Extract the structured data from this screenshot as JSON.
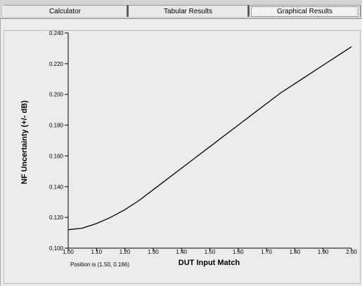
{
  "tabs": [
    {
      "label": "Calculator"
    },
    {
      "label": "Tabular Results"
    },
    {
      "label": "Graphical Results"
    }
  ],
  "status": {
    "position_text": "Position is (1.50, 0.166)"
  },
  "chart_data": {
    "type": "line",
    "xlabel": "DUT Input Match",
    "ylabel": "NF Uncertainty (+/- dB)",
    "xlim": [
      1.0,
      2.0
    ],
    "ylim": [
      0.1,
      0.24
    ],
    "x_ticks": [
      "1.00",
      "1.10",
      "1.20",
      "1.30",
      "1.40",
      "1.50",
      "1.60",
      "1.70",
      "1.80",
      "1.90",
      "2.00"
    ],
    "y_ticks": [
      "0.100",
      "0.120",
      "0.140",
      "0.160",
      "0.180",
      "0.200",
      "0.220",
      "0.240"
    ],
    "grid": false,
    "series": [
      {
        "x": [
          1.0,
          1.05,
          1.1,
          1.15,
          1.2,
          1.25,
          1.3,
          1.35,
          1.4,
          1.45,
          1.5,
          1.55,
          1.6,
          1.65,
          1.7,
          1.75,
          1.8,
          1.85,
          1.9,
          1.95,
          2.0
        ],
        "y": [
          0.112,
          0.113,
          0.116,
          0.12,
          0.125,
          0.131,
          0.138,
          0.145,
          0.152,
          0.159,
          0.166,
          0.173,
          0.18,
          0.187,
          0.194,
          0.201,
          0.207,
          0.213,
          0.219,
          0.225,
          0.231
        ],
        "color": "#000000"
      }
    ]
  }
}
